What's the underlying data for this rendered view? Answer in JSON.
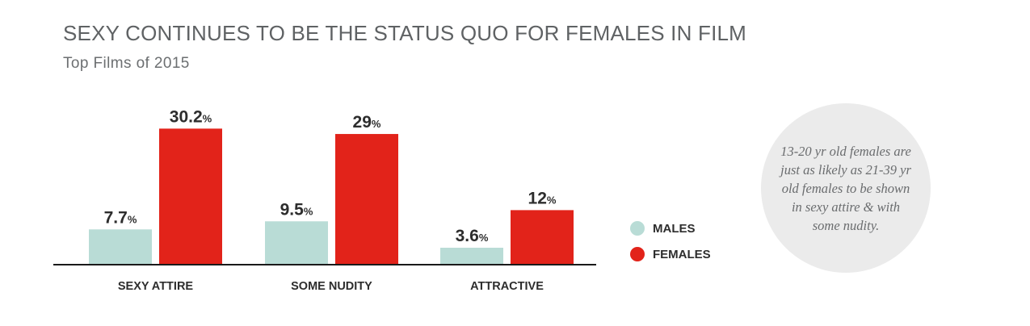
{
  "title": "SEXY CONTINUES TO BE THE STATUS QUO FOR FEMALES IN FILM",
  "subtitle": "Top Films of 2015",
  "colors": {
    "males": "#b9dcd6",
    "females": "#e2231a"
  },
  "legend": [
    {
      "key": "males",
      "label": "MALES"
    },
    {
      "key": "females",
      "label": "FEMALES"
    }
  ],
  "note": "13-20 yr old females are just as likely as 21-39 yr old females to be shown in sexy attire & with some nudity.",
  "chart_data": {
    "type": "bar",
    "title": "SEXY CONTINUES TO BE THE STATUS QUO FOR FEMALES IN FILM",
    "subtitle": "Top Films of 2015",
    "categories": [
      "SEXY ATTIRE",
      "SOME NUDITY",
      "ATTRACTIVE"
    ],
    "series": [
      {
        "name": "MALES",
        "values": [
          7.7,
          9.5,
          3.6
        ],
        "labels": [
          "7.7",
          "9.5",
          "3.6"
        ]
      },
      {
        "name": "FEMALES",
        "values": [
          30.2,
          29,
          12
        ],
        "labels": [
          "30.2",
          "29",
          "12"
        ]
      }
    ],
    "unit": "%",
    "ylim": [
      0,
      32
    ],
    "grid": false,
    "legend_position": "right"
  }
}
